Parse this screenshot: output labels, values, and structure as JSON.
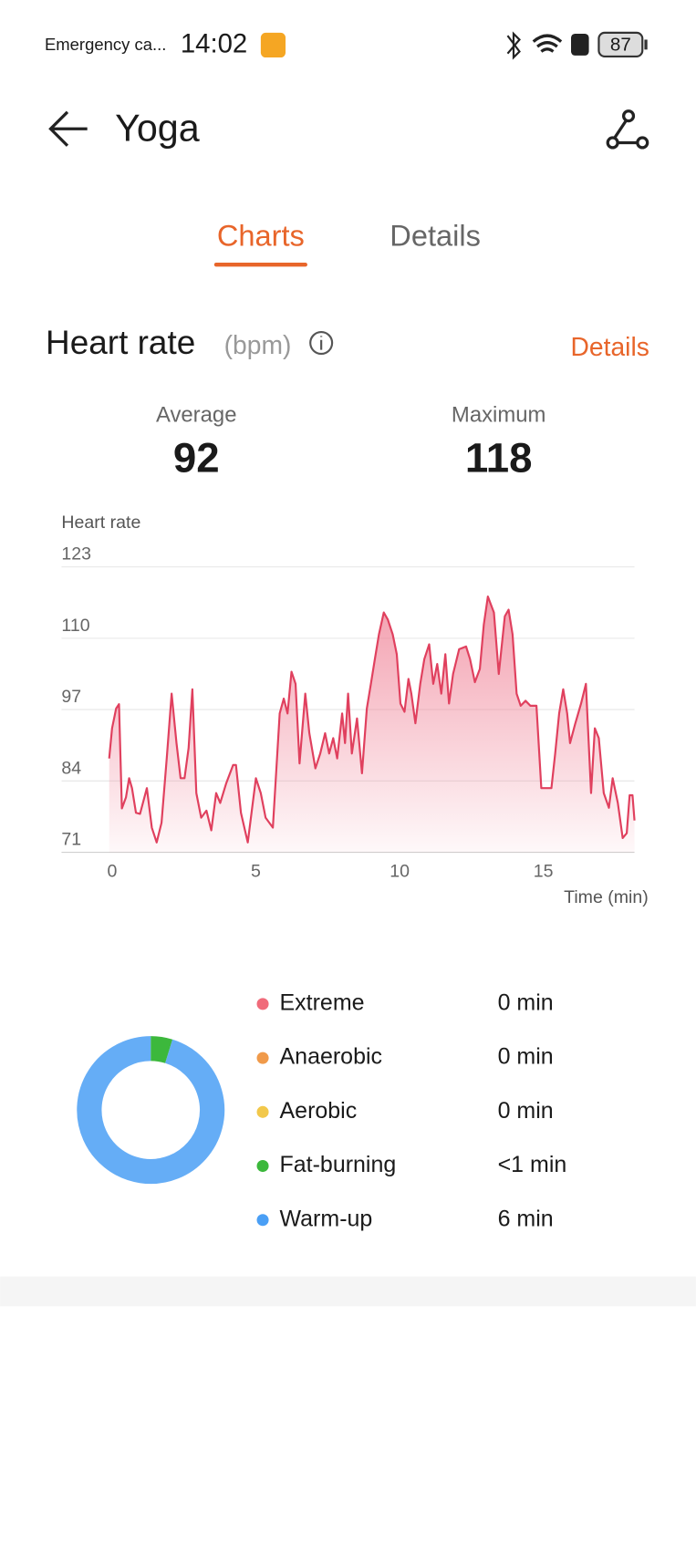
{
  "status_bar": {
    "carrier": "Emergency ca...",
    "time": "14:02",
    "battery": "87"
  },
  "header": {
    "title": "Yoga"
  },
  "tabs": [
    "Charts",
    "Details"
  ],
  "section": {
    "title": "Heart rate",
    "unit": "(bpm)",
    "link": "Details"
  },
  "stats": [
    {
      "label": "Average",
      "value": 92
    },
    {
      "label": "Maximum",
      "value": 118
    }
  ],
  "chart_data": [
    {
      "type": "line",
      "y_label": "Heart rate",
      "x_label": "Time (min)",
      "color": "#e0405e",
      "xlim": [
        -1.76,
        18.17
      ],
      "xticks": [
        0,
        5,
        10,
        15
      ],
      "ylim": [
        71,
        123
      ],
      "yticks": [
        71,
        84,
        97,
        110,
        123
      ],
      "grid": true,
      "x": [
        -0.1,
        0,
        0.14,
        0.24,
        0.34,
        0.48,
        0.59,
        0.69,
        0.83,
        0.97,
        1.21,
        1.38,
        1.55,
        1.72,
        1.9,
        2.07,
        2.24,
        2.38,
        2.52,
        2.66,
        2.79,
        2.93,
        3.1,
        3.28,
        3.45,
        3.62,
        3.76,
        3.97,
        4.21,
        4.31,
        4.48,
        4.72,
        5.0,
        5.17,
        5.34,
        5.59,
        5.83,
        5.97,
        6.1,
        6.24,
        6.38,
        6.52,
        6.72,
        6.86,
        7.07,
        7.24,
        7.41,
        7.55,
        7.69,
        7.83,
        8.0,
        8.1,
        8.21,
        8.34,
        8.52,
        8.69,
        8.86,
        9.0,
        9.14,
        9.28,
        9.45,
        9.59,
        9.76,
        9.9,
        10.03,
        10.17,
        10.31,
        10.41,
        10.55,
        10.72,
        10.86,
        11.03,
        11.17,
        11.31,
        11.45,
        11.59,
        11.72,
        11.86,
        12.07,
        12.31,
        12.45,
        12.62,
        12.79,
        12.93,
        13.07,
        13.28,
        13.45,
        13.66,
        13.79,
        13.93,
        14.07,
        14.21,
        14.38,
        14.55,
        14.76,
        14.93,
        15.28,
        15.41,
        15.55,
        15.69,
        15.83,
        15.93,
        16.1,
        16.31,
        16.48,
        16.66,
        16.79,
        16.93,
        17.1,
        17.28,
        17.41,
        17.59,
        17.76,
        17.9,
        18.0,
        18.1,
        18.17
      ],
      "values": [
        88.1,
        93.6,
        97.2,
        98,
        79,
        81,
        84.5,
        82.7,
        78.2,
        78,
        82.7,
        75.5,
        72.8,
        76.4,
        88,
        99.9,
        90.9,
        84.5,
        84.5,
        90,
        100.7,
        81.8,
        77.3,
        78.6,
        75,
        81.8,
        80,
        83.6,
        86.9,
        86.9,
        78.2,
        72.8,
        84.5,
        81.8,
        77.3,
        75.5,
        96.3,
        99,
        96.3,
        103.9,
        101.7,
        87.2,
        99.9,
        92.7,
        86.3,
        89,
        92.7,
        89,
        91.8,
        88.1,
        96.3,
        90.9,
        99.9,
        89,
        95.4,
        85.4,
        97.2,
        101.7,
        106.2,
        110.7,
        114.7,
        113.4,
        110.7,
        107.1,
        98.1,
        96.6,
        102.6,
        99.9,
        94.5,
        101.7,
        106.2,
        108.9,
        101.7,
        105.3,
        99.9,
        107.1,
        98.1,
        103.5,
        108,
        108.5,
        106.2,
        102,
        104.4,
        112.5,
        117.6,
        114.7,
        103.5,
        114,
        115.2,
        110.7,
        99.9,
        97.7,
        98.6,
        97.7,
        97.7,
        82.7,
        82.7,
        89,
        96.3,
        100.7,
        96.3,
        90.9,
        94.3,
        98.1,
        101.7,
        81.8,
        93.6,
        91.8,
        81.8,
        79.1,
        84.5,
        80,
        73.6,
        74.5,
        81.4,
        81.4,
        76.8
      ]
    },
    {
      "type": "donut",
      "categories": [
        "Extreme",
        "Anaerobic",
        "Aerobic",
        "Fat-burning",
        "Warm-up"
      ],
      "values": [
        0,
        0,
        0,
        0.3,
        6
      ],
      "value_labels": [
        "0 min",
        "0 min",
        "0 min",
        "<1 min",
        "6 min"
      ],
      "colors": [
        "#f06b7a",
        "#f09a4a",
        "#f2c84b",
        "#3cb83c",
        "#4a9ff5"
      ]
    }
  ]
}
